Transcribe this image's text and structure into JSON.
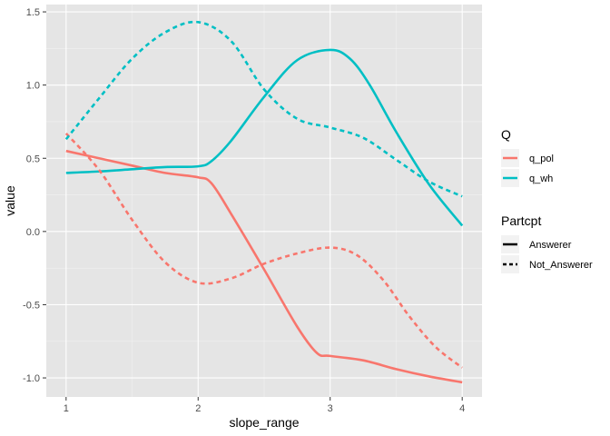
{
  "chart_data": {
    "type": "line",
    "xlabel": "slope_range",
    "ylabel": "value",
    "xlim": [
      0.85,
      4.15
    ],
    "ylim": [
      -1.13,
      1.55
    ],
    "x_ticks": [
      1,
      2,
      3,
      4
    ],
    "x_tick_labels": [
      "1",
      "2",
      "3",
      "4"
    ],
    "y_ticks": [
      -1.0,
      -0.5,
      0.0,
      0.5,
      1.0,
      1.5
    ],
    "y_tick_labels": [
      "-1.0",
      "-0.5",
      "0.0",
      "0.5",
      "1.0",
      "1.5"
    ],
    "grid": true,
    "background": "#e5e5e5",
    "legends": [
      {
        "title": "Q",
        "placement": "right",
        "entries": [
          {
            "label": "q_pol",
            "color": "#f8766d"
          },
          {
            "label": "q_wh",
            "color": "#00bfc4"
          }
        ]
      },
      {
        "title": "Partcpt",
        "placement": "right",
        "entries": [
          {
            "label": "Answerer",
            "dash": "solid"
          },
          {
            "label": "Not_Answerer",
            "dash": "dashed"
          }
        ]
      }
    ],
    "series": [
      {
        "name": "q_pol",
        "linetype": "Answerer",
        "color": "#f8766d",
        "dash": "solid",
        "points": [
          [
            1,
            0.55
          ],
          [
            1.25,
            0.5
          ],
          [
            1.5,
            0.45
          ],
          [
            1.75,
            0.4
          ],
          [
            2,
            0.37
          ],
          [
            2.1,
            0.33
          ],
          [
            2.25,
            0.12
          ],
          [
            2.5,
            -0.26
          ],
          [
            2.75,
            -0.65
          ],
          [
            2.9,
            -0.83
          ],
          [
            3,
            -0.85
          ],
          [
            3.25,
            -0.88
          ],
          [
            3.5,
            -0.94
          ],
          [
            3.75,
            -0.99
          ],
          [
            4,
            -1.03
          ]
        ]
      },
      {
        "name": "q_wh",
        "linetype": "Answerer",
        "color": "#00bfc4",
        "dash": "solid",
        "points": [
          [
            1,
            0.4
          ],
          [
            1.25,
            0.41
          ],
          [
            1.5,
            0.425
          ],
          [
            1.75,
            0.44
          ],
          [
            2,
            0.445
          ],
          [
            2.1,
            0.48
          ],
          [
            2.25,
            0.62
          ],
          [
            2.5,
            0.92
          ],
          [
            2.75,
            1.17
          ],
          [
            3,
            1.24
          ],
          [
            3.15,
            1.18
          ],
          [
            3.3,
            1.0
          ],
          [
            3.5,
            0.68
          ],
          [
            3.75,
            0.32
          ],
          [
            4,
            0.04
          ]
        ]
      },
      {
        "name": "q_pol",
        "linetype": "Not_Answerer",
        "color": "#f8766d",
        "dash": "dashed",
        "points": [
          [
            1,
            0.67
          ],
          [
            1.25,
            0.42
          ],
          [
            1.5,
            0.08
          ],
          [
            1.75,
            -0.21
          ],
          [
            2,
            -0.35
          ],
          [
            2.25,
            -0.32
          ],
          [
            2.5,
            -0.22
          ],
          [
            2.75,
            -0.15
          ],
          [
            3,
            -0.11
          ],
          [
            3.2,
            -0.16
          ],
          [
            3.4,
            -0.33
          ],
          [
            3.6,
            -0.58
          ],
          [
            3.8,
            -0.79
          ],
          [
            4,
            -0.93
          ]
        ]
      },
      {
        "name": "q_wh",
        "linetype": "Not_Answerer",
        "color": "#00bfc4",
        "dash": "dashed",
        "points": [
          [
            1,
            0.63
          ],
          [
            1.25,
            0.91
          ],
          [
            1.5,
            1.18
          ],
          [
            1.75,
            1.36
          ],
          [
            2,
            1.43
          ],
          [
            2.25,
            1.3
          ],
          [
            2.5,
            0.97
          ],
          [
            2.75,
            0.77
          ],
          [
            3,
            0.71
          ],
          [
            3.25,
            0.64
          ],
          [
            3.5,
            0.49
          ],
          [
            3.75,
            0.34
          ],
          [
            4,
            0.24
          ]
        ]
      }
    ]
  }
}
